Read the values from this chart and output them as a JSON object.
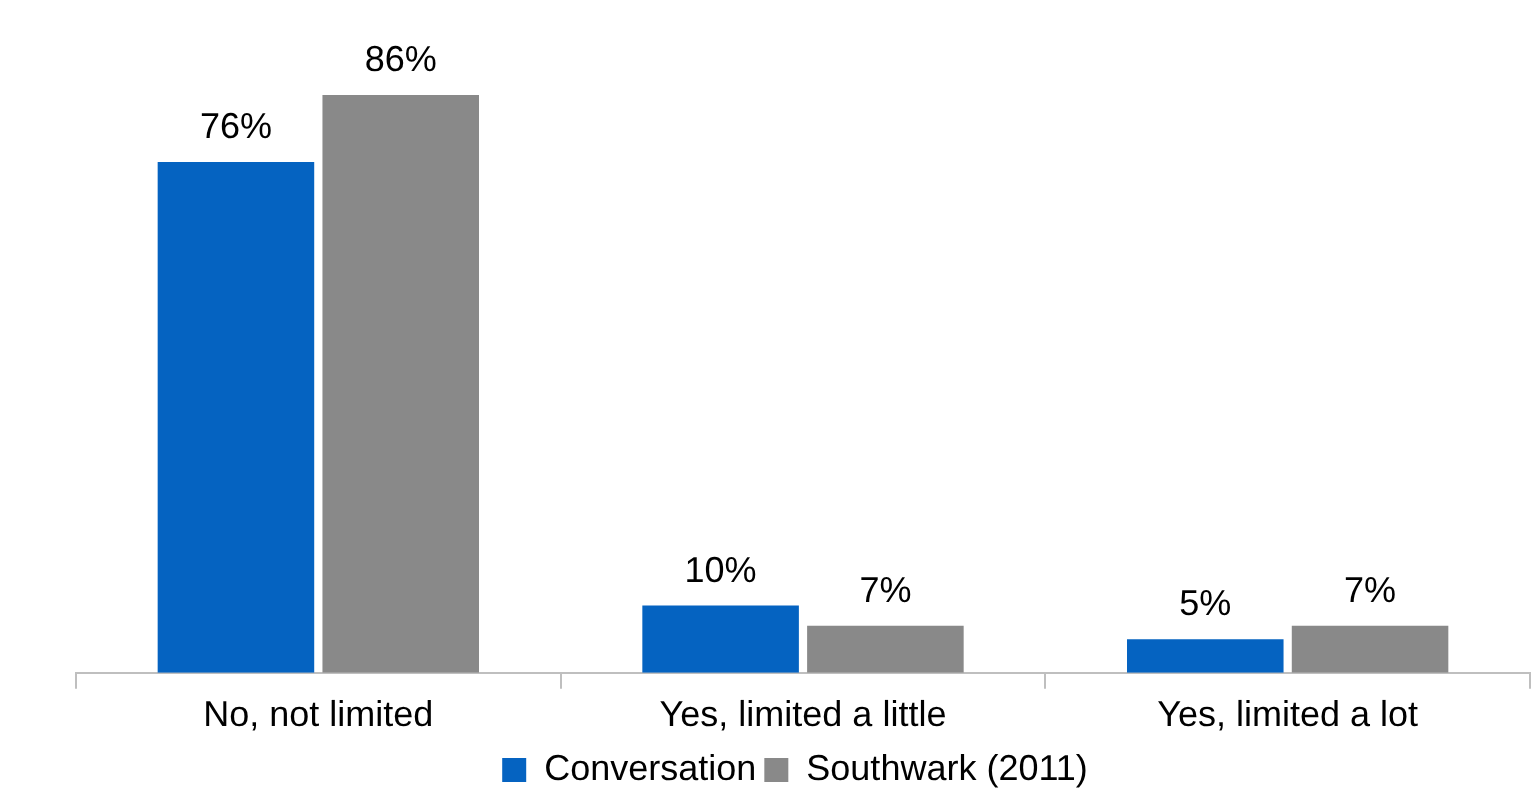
{
  "chart_data": {
    "type": "bar",
    "categories": [
      "No, not limited",
      "Yes, limited a little",
      "Yes, limited a lot"
    ],
    "series": [
      {
        "name": "Conversation",
        "color": "#0563c1",
        "values": [
          76,
          10,
          5
        ],
        "value_labels": [
          "76%",
          "10%",
          "5%"
        ]
      },
      {
        "name": "Southwark (2011)",
        "color": "#898989",
        "values": [
          86,
          7,
          7
        ],
        "value_labels": [
          "86%",
          "7%",
          "7%"
        ]
      }
    ],
    "relative": false,
    "grid": false,
    "legend": "bottom"
  }
}
